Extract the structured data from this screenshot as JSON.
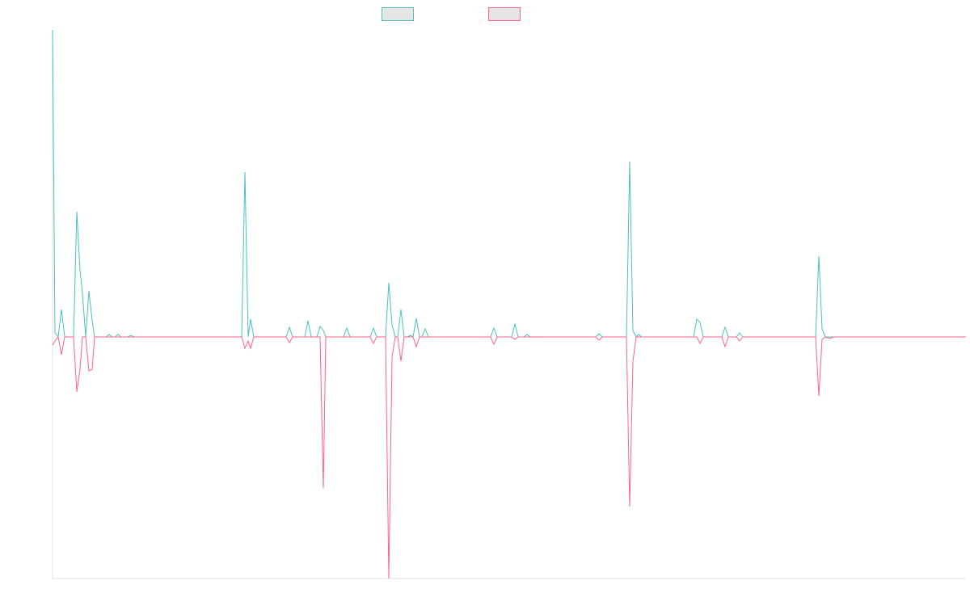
{
  "chart_data": {
    "type": "line",
    "x": [
      0,
      3,
      7,
      11,
      15,
      26,
      30,
      34,
      37,
      41,
      45,
      49,
      52,
      66,
      70,
      74,
      77,
      81,
      85,
      93,
      97,
      101,
      230,
      234,
      238,
      242,
      245,
      249,
      289,
      293,
      297,
      312,
      316,
      320,
      327,
      331,
      335,
      338,
      360,
      364,
      368,
      393,
      397,
      401,
      412,
      416,
      420,
      424,
      427,
      431,
      435,
      439,
      443,
      446,
      450,
      454,
      457,
      461,
      465,
      542,
      546,
      550,
      568,
      572,
      576,
      583,
      587,
      591,
      672,
      676,
      680,
      710,
      714,
      718,
      722,
      725,
      729,
      793,
      797,
      801,
      805,
      828,
      832,
      836,
      846,
      850,
      854,
      940,
      944,
      948,
      952,
      956,
      962,
      966,
      1130
    ],
    "xlim": [
      0,
      1130
    ],
    "ylim": [
      -299,
      380
    ],
    "series": [
      {
        "color": "#4bc0c0",
        "values": [
          380,
          5,
          0,
          34,
          0,
          0,
          155,
          82,
          55,
          0,
          57,
          20,
          0,
          0,
          3,
          0,
          0,
          3,
          0,
          0,
          2,
          0,
          0,
          0,
          204,
          0,
          22,
          0,
          0,
          12,
          0,
          0,
          20,
          0,
          0,
          13,
          8,
          0,
          0,
          11,
          0,
          0,
          11,
          0,
          0,
          67,
          15,
          0,
          0,
          34,
          0,
          0,
          2,
          0,
          23,
          0,
          0,
          10,
          0,
          0,
          11,
          0,
          0,
          16,
          0,
          0,
          3,
          0,
          0,
          4,
          0,
          0,
          217,
          8,
          0,
          3,
          0,
          0,
          22,
          18,
          0,
          0,
          12,
          0,
          0,
          5,
          0,
          0,
          0,
          100,
          10,
          0,
          0,
          0,
          0
        ]
      },
      {
        "color": "#ff6384",
        "values": [
          -10,
          -5,
          0,
          -22,
          0,
          0,
          -68,
          -40,
          0,
          0,
          -42,
          -40,
          0,
          0,
          0,
          0,
          0,
          0,
          0,
          0,
          0,
          0,
          0,
          0,
          -14,
          -5,
          -14,
          0,
          0,
          -7,
          0,
          0,
          0,
          0,
          0,
          0,
          -187,
          0,
          0,
          0,
          0,
          0,
          -8,
          0,
          0,
          -299,
          -25,
          0,
          0,
          -30,
          0,
          0,
          0,
          0,
          -12,
          0,
          0,
          0,
          0,
          0,
          -9,
          0,
          0,
          -3,
          0,
          0,
          0,
          0,
          0,
          -4,
          0,
          0,
          -210,
          -30,
          0,
          0,
          0,
          0,
          0,
          -8,
          0,
          0,
          -12,
          0,
          0,
          -5,
          0,
          0,
          0,
          -73,
          -3,
          0,
          -2,
          0,
          0
        ]
      }
    ]
  }
}
